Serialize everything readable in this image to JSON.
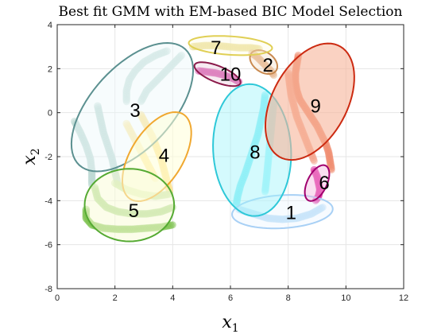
{
  "chart_data": {
    "type": "scatter",
    "title": "Best fit GMM with EM-based BIC Model Selection",
    "xlabel": "x",
    "xlabel_sub": "1",
    "ylabel": "x",
    "ylabel_sub": "2",
    "xlim": [
      0,
      12
    ],
    "ylim": [
      -8,
      4
    ],
    "xticks": [
      0,
      2,
      4,
      6,
      8,
      10,
      12
    ],
    "yticks": [
      -8,
      -6,
      -4,
      -2,
      0,
      2,
      4
    ],
    "grid": true,
    "components": [
      {
        "label": "1",
        "mean": [
          7.8,
          -4.5
        ],
        "rx": 1.75,
        "ry": 0.75,
        "angle": 5,
        "edge": "#a8d0f5",
        "fill": "#e9f4ff",
        "fill_opacity": 0.35,
        "label_pos": [
          8.1,
          -4.55
        ]
      },
      {
        "label": "2",
        "mean": [
          7.15,
          2.3
        ],
        "rx": 0.6,
        "ry": 0.4,
        "angle": -55,
        "edge": "#c98a50",
        "fill": "#f3dcc4",
        "fill_opacity": 0.35,
        "label_pos": [
          7.3,
          2.15
        ]
      },
      {
        "label": "3",
        "mean": [
          2.6,
          0.25
        ],
        "rx": 3.25,
        "ry": 1.55,
        "angle": 60,
        "edge": "#5b9090",
        "fill": "#eef8fb",
        "fill_opacity": 0.45,
        "label_pos": [
          2.7,
          0.1
        ]
      },
      {
        "label": "4",
        "mean": [
          3.45,
          -2.0
        ],
        "rx": 2.15,
        "ry": 0.95,
        "angle": 68,
        "edge": "#f0a830",
        "fill": "#ffffd9",
        "fill_opacity": 0.55,
        "label_pos": [
          3.7,
          -1.95
        ]
      },
      {
        "label": "5",
        "mean": [
          2.5,
          -4.2
        ],
        "rx": 1.55,
        "ry": 1.65,
        "angle": 0,
        "edge": "#55aa33",
        "fill": "#fafcd8",
        "fill_opacity": 0.55,
        "label_pos": [
          2.65,
          -4.45
        ]
      },
      {
        "label": "6",
        "mean": [
          9.0,
          -3.2
        ],
        "rx": 0.85,
        "ry": 0.35,
        "angle": 72,
        "edge": "#a0006e",
        "fill": "#f5b8df",
        "fill_opacity": 0.45,
        "label_pos": [
          9.25,
          -3.2
        ]
      },
      {
        "label": "7",
        "mean": [
          6.0,
          3.05
        ],
        "rx": 1.45,
        "ry": 0.42,
        "angle": -5,
        "edge": "#e0cf55",
        "fill": "#fffbe2",
        "fill_opacity": 0.35,
        "label_pos": [
          5.5,
          2.95
        ]
      },
      {
        "label": "8",
        "mean": [
          6.75,
          -1.7
        ],
        "rx": 3.0,
        "ry": 1.35,
        "angle": 92,
        "edge": "#2ec8d8",
        "fill": "#9ff5fb",
        "fill_opacity": 0.45,
        "label_pos": [
          6.85,
          -1.8
        ]
      },
      {
        "label": "9",
        "mean": [
          8.75,
          0.5
        ],
        "rx": 2.75,
        "ry": 1.35,
        "angle": 72,
        "edge": "#cc2a11",
        "fill": "#f7b49a",
        "fill_opacity": 0.6,
        "label_pos": [
          8.95,
          0.3
        ]
      },
      {
        "label": "10",
        "mean": [
          5.55,
          1.75
        ],
        "rx": 0.9,
        "ry": 0.35,
        "angle": -30,
        "edge": "#8b1a4a",
        "fill": "#e8c3d8",
        "fill_opacity": 0.35,
        "label_pos": [
          6.0,
          1.75
        ]
      }
    ],
    "point_trails": [
      {
        "color": "#f0896c",
        "points": [
          [
            8.35,
            2.6
          ],
          [
            8.3,
            2.2
          ],
          [
            8.25,
            1.8
          ],
          [
            8.25,
            1.4
          ],
          [
            8.3,
            1.0
          ],
          [
            8.4,
            0.6
          ],
          [
            8.6,
            0.2
          ],
          [
            8.8,
            -0.2
          ],
          [
            9.0,
            -0.6
          ],
          [
            9.15,
            -1.0
          ],
          [
            9.3,
            -1.4
          ],
          [
            9.4,
            -1.8
          ],
          [
            9.45,
            -2.2
          ],
          [
            9.5,
            -2.6
          ]
        ]
      },
      {
        "color": "#f4a48c",
        "points": [
          [
            8.0,
            1.8
          ],
          [
            8.05,
            1.3
          ],
          [
            8.1,
            0.8
          ],
          [
            8.2,
            0.3
          ],
          [
            8.3,
            -0.2
          ],
          [
            8.45,
            -0.7
          ],
          [
            8.6,
            -1.2
          ],
          [
            8.75,
            -1.7
          ],
          [
            8.9,
            -2.2
          ]
        ]
      },
      {
        "color": "#e0229c",
        "points": [
          [
            8.9,
            -2.6
          ],
          [
            9.0,
            -2.9
          ],
          [
            9.05,
            -3.2
          ],
          [
            9.1,
            -3.5
          ],
          [
            9.05,
            -3.8
          ],
          [
            8.95,
            -4.0
          ]
        ]
      },
      {
        "color": "#d85ab0",
        "points": [
          [
            4.9,
            1.9
          ],
          [
            5.2,
            1.85
          ],
          [
            5.5,
            1.8
          ],
          [
            5.8,
            1.7
          ],
          [
            6.1,
            1.55
          ],
          [
            6.3,
            1.4
          ]
        ]
      },
      {
        "color": "#e9dc90",
        "points": [
          [
            4.7,
            3.0
          ],
          [
            5.1,
            3.05
          ],
          [
            5.5,
            3.05
          ],
          [
            5.9,
            3.0
          ],
          [
            6.3,
            2.95
          ],
          [
            6.7,
            2.95
          ],
          [
            7.0,
            2.9
          ]
        ]
      },
      {
        "color": "#e6b48c",
        "points": [
          [
            6.75,
            2.7
          ],
          [
            6.95,
            2.5
          ],
          [
            7.1,
            2.3
          ],
          [
            7.25,
            2.1
          ],
          [
            7.4,
            1.9
          ],
          [
            7.5,
            1.7
          ]
        ]
      },
      {
        "color": "#7fecf4",
        "points": [
          [
            7.2,
            0.8
          ],
          [
            7.15,
            0.2
          ],
          [
            7.05,
            -0.4
          ],
          [
            6.95,
            -1.0
          ],
          [
            6.8,
            -1.6
          ],
          [
            6.65,
            -2.2
          ],
          [
            6.5,
            -2.8
          ],
          [
            6.35,
            -3.3
          ],
          [
            6.25,
            -3.8
          ],
          [
            6.2,
            -4.2
          ]
        ]
      },
      {
        "color": "#9ff3f9",
        "points": [
          [
            7.5,
            0.5
          ],
          [
            7.45,
            -0.2
          ],
          [
            7.4,
            -0.9
          ],
          [
            7.35,
            -1.6
          ],
          [
            7.3,
            -2.3
          ],
          [
            7.25,
            -3.0
          ],
          [
            7.2,
            -3.6
          ]
        ]
      },
      {
        "color": "#b5dcf7",
        "points": [
          [
            6.3,
            -4.4
          ],
          [
            6.8,
            -4.6
          ],
          [
            7.3,
            -4.8
          ],
          [
            7.8,
            -4.85
          ],
          [
            8.3,
            -4.8
          ],
          [
            8.8,
            -4.6
          ],
          [
            9.2,
            -4.3
          ]
        ]
      },
      {
        "color": "#b9d7d1",
        "points": [
          [
            0.6,
            -0.4
          ],
          [
            0.8,
            -0.9
          ],
          [
            1.0,
            -1.5
          ],
          [
            1.15,
            -2.1
          ],
          [
            1.2,
            -2.7
          ],
          [
            1.2,
            -3.3
          ]
        ]
      },
      {
        "color": "#b9d7d1",
        "points": [
          [
            1.4,
            0.3
          ],
          [
            1.5,
            -0.3
          ],
          [
            1.6,
            -0.9
          ],
          [
            1.75,
            -1.5
          ],
          [
            1.9,
            -2.1
          ],
          [
            2.0,
            -2.7
          ],
          [
            2.1,
            -3.2
          ]
        ]
      },
      {
        "color": "#c5dfd9",
        "points": [
          [
            3.8,
            2.8
          ],
          [
            3.4,
            2.6
          ],
          [
            3.0,
            2.3
          ],
          [
            2.7,
            1.9
          ],
          [
            2.5,
            1.5
          ],
          [
            2.4,
            1.0
          ],
          [
            2.4,
            0.5
          ]
        ]
      },
      {
        "color": "#c5dfd9",
        "points": [
          [
            4.3,
            2.6
          ],
          [
            4.0,
            2.2
          ],
          [
            3.7,
            1.8
          ],
          [
            3.4,
            1.4
          ],
          [
            3.1,
            1.0
          ],
          [
            2.9,
            0.5
          ]
        ]
      },
      {
        "color": "#fde28c",
        "points": [
          [
            2.9,
            -0.1
          ],
          [
            3.1,
            -0.6
          ],
          [
            3.3,
            -1.1
          ],
          [
            3.45,
            -1.6
          ],
          [
            3.6,
            -2.1
          ],
          [
            3.7,
            -2.6
          ],
          [
            3.8,
            -3.1
          ],
          [
            3.9,
            -3.6
          ]
        ]
      },
      {
        "color": "#fdeaa4",
        "points": [
          [
            2.4,
            -0.5
          ],
          [
            2.6,
            -1.0
          ],
          [
            2.8,
            -1.5
          ],
          [
            3.0,
            -2.0
          ],
          [
            3.2,
            -2.5
          ],
          [
            3.4,
            -3.0
          ]
        ]
      },
      {
        "color": "#7cc24c",
        "points": [
          [
            1.0,
            -4.4
          ],
          [
            1.0,
            -4.8
          ],
          [
            1.2,
            -5.1
          ],
          [
            1.6,
            -5.25
          ],
          [
            2.1,
            -5.3
          ],
          [
            2.6,
            -5.3
          ],
          [
            3.1,
            -5.25
          ],
          [
            3.6,
            -5.2
          ],
          [
            4.0,
            -5.1
          ]
        ]
      },
      {
        "color": "#a7d68a",
        "points": [
          [
            1.3,
            -3.4
          ],
          [
            1.4,
            -3.9
          ],
          [
            1.7,
            -4.3
          ],
          [
            2.1,
            -4.5
          ],
          [
            2.6,
            -4.6
          ],
          [
            3.1,
            -4.6
          ],
          [
            3.6,
            -4.5
          ],
          [
            4.0,
            -4.3
          ]
        ]
      },
      {
        "color": "#c5e4a8",
        "points": [
          [
            2.0,
            -3.2
          ],
          [
            2.4,
            -3.5
          ],
          [
            2.9,
            -3.7
          ],
          [
            3.4,
            -3.8
          ],
          [
            3.9,
            -3.7
          ]
        ]
      }
    ]
  }
}
